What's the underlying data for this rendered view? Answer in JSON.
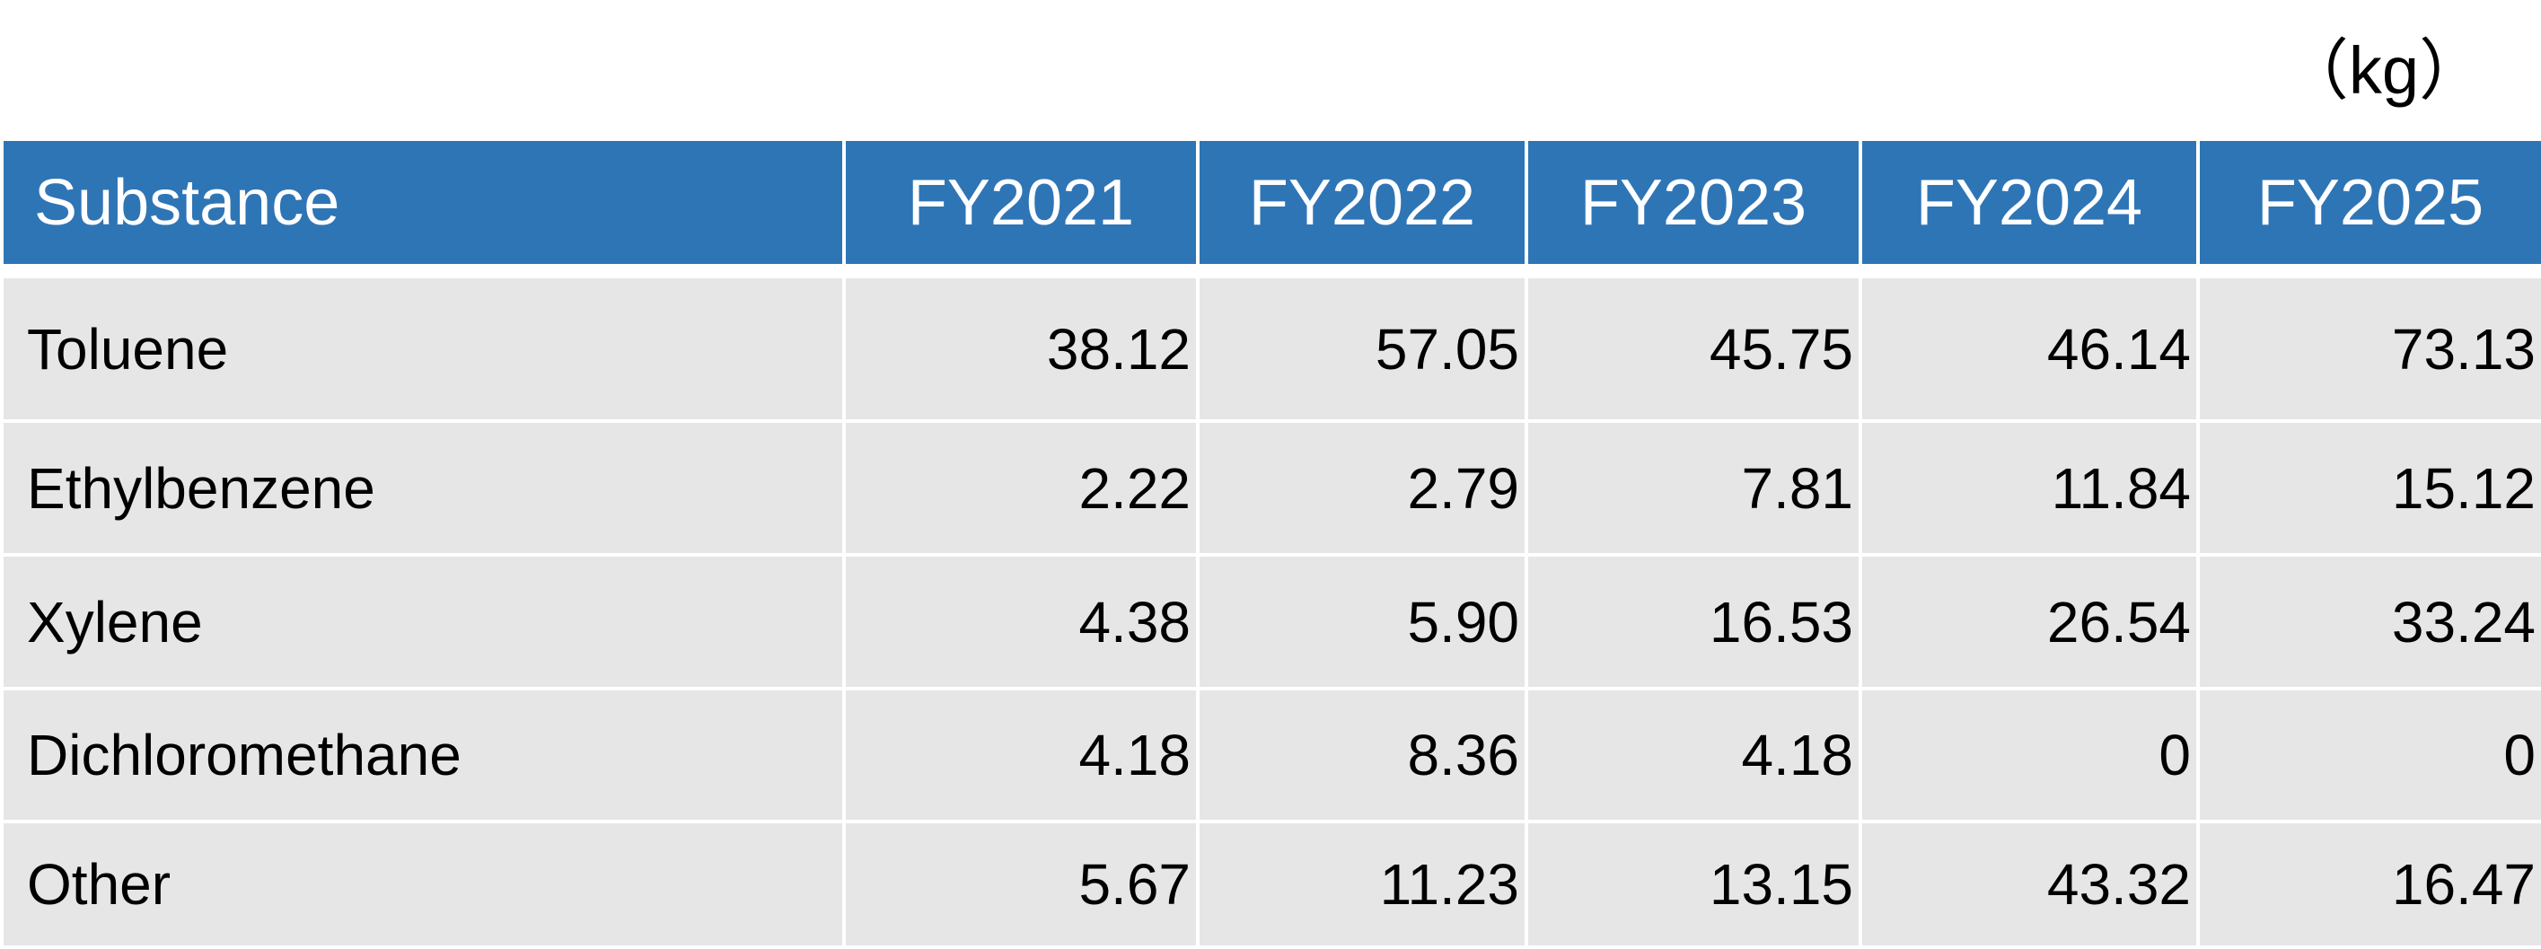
{
  "chart_data": {
    "type": "table",
    "unit": "（kg）",
    "header": {
      "substance": "Substance",
      "years": [
        "FY2021",
        "FY2022",
        "FY2023",
        "FY2024",
        "FY2025"
      ]
    },
    "rows": [
      {
        "name": "Toluene",
        "values": [
          "38.12",
          "57.05",
          "45.75",
          "46.14",
          "73.13"
        ]
      },
      {
        "name": "Ethylbenzene",
        "values": [
          "2.22",
          "2.79",
          "7.81",
          "11.84",
          "15.12"
        ]
      },
      {
        "name": "Xylene",
        "values": [
          "4.38",
          "5.90",
          "16.53",
          "26.54",
          "33.24"
        ]
      },
      {
        "name": "Dichloromethane",
        "values": [
          "4.18",
          "8.36",
          "4.18",
          "0",
          "0"
        ]
      },
      {
        "name": "Other",
        "values": [
          "5.67",
          "11.23",
          "13.15",
          "43.32",
          "16.47"
        ]
      }
    ]
  },
  "colors": {
    "header_bg": "#2e75b6",
    "header_text": "#ffffff",
    "row_bg": "#e6e6e6"
  }
}
